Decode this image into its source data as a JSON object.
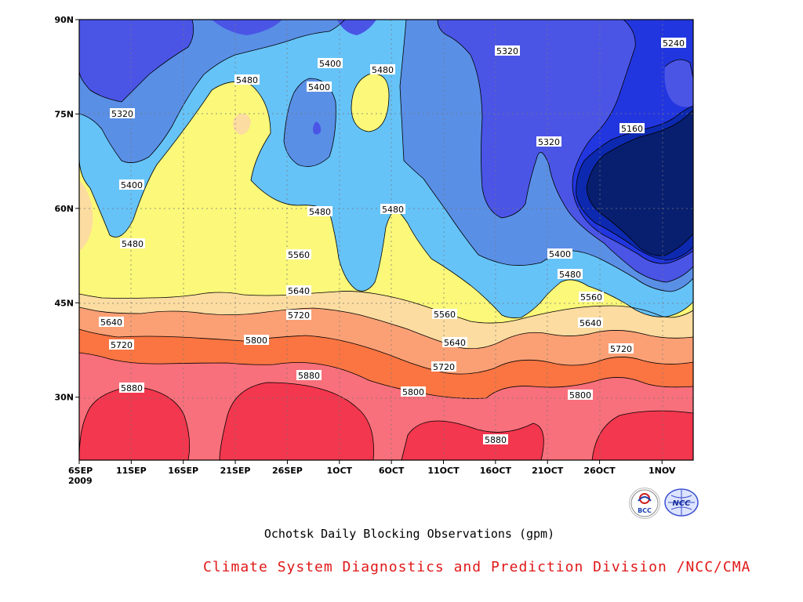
{
  "chart_data": {
    "type": "heatmap",
    "title": "",
    "xlabel": "",
    "ylabel": "",
    "x_ticks": [
      "6SEP",
      "11SEP",
      "16SEP",
      "21SEP",
      "26SEP",
      "1OCT",
      "6OCT",
      "11OCT",
      "16OCT",
      "21OCT",
      "26OCT",
      "1NOV"
    ],
    "x_year_label": "2009",
    "y_ticks": [
      "90N",
      "75N",
      "60N",
      "45N",
      "30N"
    ],
    "xlim": [
      "2009-09-06",
      "2009-11-04"
    ],
    "ylim": [
      20,
      90
    ],
    "grid": true,
    "contour_levels": [
      5160,
      5240,
      5320,
      5400,
      5480,
      5560,
      5640,
      5720,
      5800,
      5880
    ],
    "contour_labels": [
      "5240",
      "5320",
      "5320",
      "5320",
      "5400",
      "5400",
      "5400",
      "5400",
      "5480",
      "5480",
      "5480",
      "5480",
      "5480",
      "5480",
      "5160",
      "5560",
      "5560",
      "5560",
      "5640",
      "5640",
      "5640",
      "5640",
      "5720",
      "5720",
      "5720",
      "5720",
      "5800",
      "5800",
      "5800",
      "5880",
      "5880",
      "5880"
    ],
    "fill_colors": {
      "below_5160": "#081f70",
      "5160": "#0c29b0",
      "5240": "#2236e0",
      "5320": "#4a55e6",
      "5400": "#5a8fe6",
      "5480": "#66c3f8",
      "5560": "#fbf87a",
      "5640": "#fcdca0",
      "5720": "#fba075",
      "5800": "#fa7542",
      "5880": "#f8707b",
      "above_5880": "#f2374e"
    }
  },
  "caption": "Ochotsk Daily Blocking Observations (gpm)",
  "footer": "Climate System Diagnostics and Prediction Division /NCC/CMA",
  "footer_color": "#e01818",
  "logos": [
    {
      "icon": "bcc-logo-icon",
      "text": "BCC"
    },
    {
      "icon": "ncc-logo-icon",
      "text": "NCC"
    }
  ]
}
